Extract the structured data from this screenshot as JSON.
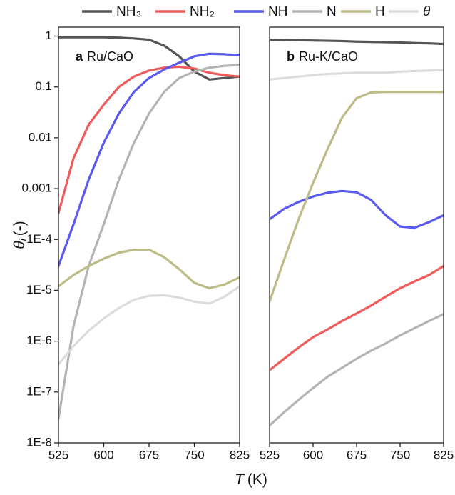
{
  "legend": [
    {
      "name": "NH₃",
      "color": "#555555"
    },
    {
      "name": "NH₂",
      "color": "#f05a5a"
    },
    {
      "name": "NH",
      "color": "#5a5af0"
    },
    {
      "name": "N",
      "color": "#b4b4b4"
    },
    {
      "name": "H",
      "color": "#bdbb86"
    },
    {
      "name": "θ",
      "color": "#dcdcdc"
    }
  ],
  "y_label": {
    "symbol": "θ",
    "subscript": "i",
    "unit": "(-)"
  },
  "x_label": {
    "symbol": "T",
    "unit": "(K)"
  },
  "chart_data": [
    {
      "type": "line",
      "label": "a",
      "title": "Ru/CaO",
      "log_y": true,
      "x": [
        525,
        550,
        575,
        600,
        625,
        650,
        675,
        700,
        725,
        750,
        775,
        800,
        825
      ],
      "xlim": [
        525,
        825
      ],
      "xticks": [
        525,
        600,
        675,
        750,
        825
      ],
      "ylim": [
        1e-08,
        1.5
      ],
      "yticks": [
        1,
        0.1,
        0.01,
        0.001,
        {
          "value": 0.0001,
          "label": "1E-4"
        },
        {
          "value": 1e-05,
          "label": "1E-5"
        },
        {
          "value": 1e-06,
          "label": "1E-6"
        },
        {
          "value": 1e-07,
          "label": "1E-7"
        },
        {
          "value": 1e-08,
          "label": "1E-8"
        }
      ],
      "series": [
        {
          "values": [
            0.95,
            0.95,
            0.95,
            0.95,
            0.93,
            0.9,
            0.85,
            0.65,
            0.4,
            0.2,
            0.14,
            0.15,
            0.16
          ]
        },
        {
          "values": [
            0.00033,
            0.004,
            0.018,
            0.045,
            0.1,
            0.16,
            0.21,
            0.24,
            0.25,
            0.23,
            0.19,
            0.17,
            0.16
          ]
        },
        {
          "values": [
            3e-05,
            0.0002,
            0.0015,
            0.008,
            0.03,
            0.08,
            0.15,
            0.22,
            0.3,
            0.4,
            0.45,
            0.44,
            0.42
          ]
        },
        {
          "values": [
            3e-08,
            2e-06,
            3e-05,
            0.0002,
            0.0015,
            0.008,
            0.03,
            0.08,
            0.15,
            0.2,
            0.24,
            0.26,
            0.27
          ]
        },
        {
          "values": [
            1.2e-05,
            2e-05,
            3e-05,
            4.2e-05,
            5.5e-05,
            6.3e-05,
            6.3e-05,
            4.5e-05,
            2.6e-05,
            1.4e-05,
            1.1e-05,
            1.3e-05,
            1.8e-05
          ]
        },
        {
          "values": [
            3.5e-07,
            8e-07,
            1.6e-06,
            2.8e-06,
            4.5e-06,
            6.5e-06,
            7.8e-06,
            8e-06,
            7.2e-06,
            6e-06,
            5.5e-06,
            7.5e-06,
            1.2e-05
          ]
        }
      ]
    },
    {
      "type": "line",
      "label": "b",
      "title": "Ru-K/CaO",
      "log_y": true,
      "x": [
        525,
        550,
        575,
        600,
        625,
        650,
        675,
        700,
        725,
        750,
        775,
        800,
        825
      ],
      "xlim": [
        525,
        825
      ],
      "xticks": [
        525,
        600,
        675,
        750,
        825
      ],
      "ylim": [
        1e-08,
        1.5
      ],
      "series": [
        {
          "values": [
            0.85,
            0.84,
            0.83,
            0.82,
            0.81,
            0.8,
            0.78,
            0.77,
            0.76,
            0.75,
            0.73,
            0.72,
            0.7
          ]
        },
        {
          "values": [
            2.7e-07,
            4.5e-07,
            7.5e-07,
            1.2e-06,
            1.7e-06,
            2.5e-06,
            3.5e-06,
            5e-06,
            7.5e-06,
            1.1e-05,
            1.5e-05,
            2e-05,
            3e-05
          ]
        },
        {
          "values": [
            0.00025,
            0.0004,
            0.00055,
            0.0007,
            0.00083,
            0.0009,
            0.00085,
            0.0006,
            0.0003,
            0.00018,
            0.00017,
            0.00022,
            0.0003
          ]
        },
        {
          "values": [
            2.2e-08,
            4e-08,
            7e-08,
            1.2e-07,
            2e-07,
            3e-07,
            4.5e-07,
            6.5e-07,
            9e-07,
            1.3e-06,
            1.8e-06,
            2.5e-06,
            3.4e-06
          ]
        },
        {
          "values": [
            6e-06,
            4e-05,
            0.00025,
            0.0013,
            0.006,
            0.025,
            0.06,
            0.078,
            0.08,
            0.08,
            0.08,
            0.08,
            0.08
          ]
        },
        {
          "values": [
            0.14,
            0.15,
            0.16,
            0.17,
            0.18,
            0.185,
            0.19,
            0.19,
            0.19,
            0.2,
            0.205,
            0.21,
            0.215
          ]
        }
      ]
    }
  ]
}
